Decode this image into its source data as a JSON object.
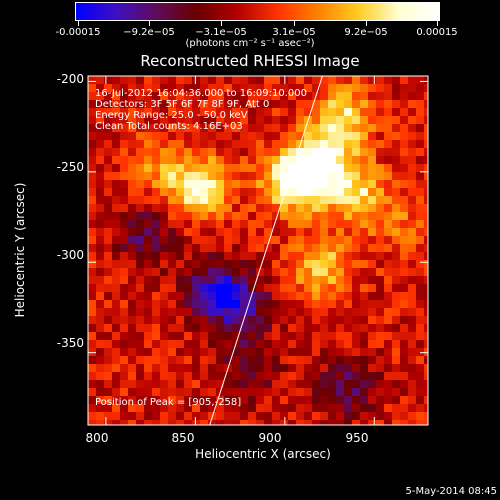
{
  "colorbar": {
    "tick_labels": [
      "-0.00015",
      "−9.2e−05",
      "−3.1e−05",
      "3.1e−05",
      "9.2e−05",
      "0.00015"
    ],
    "units": "(photons cm⁻² s⁻¹ asec⁻²)",
    "colors": [
      "#0000ff",
      "#4010c0",
      "#600a5a",
      "#6a0000",
      "#b40000",
      "#ff3300",
      "#ff8000",
      "#ffcc20",
      "#ffffd0",
      "#ffffff"
    ]
  },
  "title": "Reconstructed RHESSI Image",
  "info": {
    "line1": "16-Jul-2012 16:04:36.000 to 16:09:10.000",
    "line2": "Detectors: 3F 5F 6F 7F 8F 9F, Att 0",
    "line3": "Energy Range: 25.0 - 50.0 keV",
    "line4": "Clean     Total counts: 4.16E+03",
    "peak": "Position of Peak = [905,-258]"
  },
  "footer": "5-May-2014 08:45",
  "chart_data": {
    "type": "heatmap",
    "title": "Reconstructed RHESSI Image",
    "xlabel": "Heliocentric X (arcsec)",
    "ylabel": "Heliocentric Y (arcsec)",
    "xlim": [
      790,
      980
    ],
    "ylim": [
      -390,
      -197
    ],
    "x_ticks": [
      800,
      850,
      900,
      950
    ],
    "y_ticks": [
      -200,
      -250,
      -300,
      -350
    ],
    "color_range": [
      -0.00015,
      0.00015
    ],
    "limb_line": {
      "x": [
        858,
        921
      ],
      "y": [
        -390,
        -197
      ]
    },
    "peak": [
      905,
      -258
    ],
    "bright_sources": [
      {
        "x": 905,
        "y": -255,
        "level": 0.00015
      },
      {
        "x": 920,
        "y": -245,
        "level": 0.00013
      },
      {
        "x": 852,
        "y": -258,
        "level": 0.00012
      },
      {
        "x": 932,
        "y": -220,
        "level": 0.0001
      },
      {
        "x": 940,
        "y": -262,
        "level": 9e-05
      },
      {
        "x": 920,
        "y": -303,
        "level": 9e-05
      },
      {
        "x": 828,
        "y": -248,
        "level": 5e-05
      },
      {
        "x": 965,
        "y": -280,
        "level": 4e-05
      }
    ],
    "dark_regions": [
      {
        "x": 875,
        "y": -325,
        "level": -0.0001
      },
      {
        "x": 860,
        "y": -315,
        "level": -9e-05
      },
      {
        "x": 822,
        "y": -285,
        "level": -7e-05
      },
      {
        "x": 935,
        "y": -370,
        "level": -7e-05
      },
      {
        "x": 880,
        "y": -360,
        "level": -6e-05
      }
    ]
  }
}
